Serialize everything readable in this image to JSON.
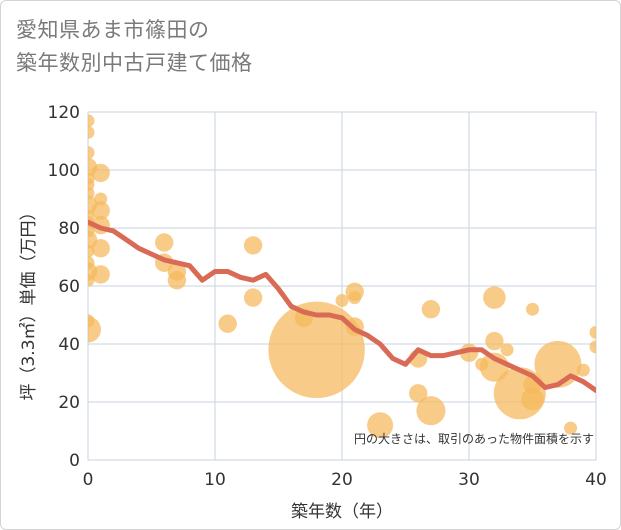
{
  "title_line1": "愛知県あま市篠田の",
  "title_line2": "築年数別中古戸建て価格",
  "chart_data": {
    "type": "scatter",
    "xlabel": "築年数（年）",
    "ylabel": "坪（3.3㎡）単価（万円）",
    "xlim": [
      0,
      40
    ],
    "ylim": [
      0,
      120
    ],
    "xticks": [
      0,
      10,
      20,
      30,
      40
    ],
    "yticks": [
      0,
      20,
      40,
      60,
      80,
      100,
      120
    ],
    "grid": true,
    "note": "円の大きさは、取引のあった物件面積を示す",
    "colors": {
      "bubble": "#f5b95a",
      "line": "#d96a55",
      "grid": "#c8d3e0"
    },
    "bubbles": [
      {
        "x": 0,
        "y": 117,
        "s": 1
      },
      {
        "x": 0,
        "y": 113,
        "s": 1
      },
      {
        "x": 0,
        "y": 106,
        "s": 1
      },
      {
        "x": 0,
        "y": 101,
        "s": 2
      },
      {
        "x": 0,
        "y": 97,
        "s": 1
      },
      {
        "x": 0,
        "y": 95,
        "s": 1
      },
      {
        "x": 0,
        "y": 92,
        "s": 1
      },
      {
        "x": 0,
        "y": 88,
        "s": 2
      },
      {
        "x": 0,
        "y": 84,
        "s": 1
      },
      {
        "x": 0,
        "y": 82,
        "s": 1
      },
      {
        "x": 0,
        "y": 79,
        "s": 1
      },
      {
        "x": 0,
        "y": 76,
        "s": 2
      },
      {
        "x": 0,
        "y": 72,
        "s": 1
      },
      {
        "x": 0,
        "y": 68,
        "s": 1
      },
      {
        "x": 0,
        "y": 65,
        "s": 2
      },
      {
        "x": 0,
        "y": 62,
        "s": 1
      },
      {
        "x": 0,
        "y": 48,
        "s": 1
      },
      {
        "x": 0,
        "y": 45,
        "s": 4
      },
      {
        "x": 1,
        "y": 99,
        "s": 2
      },
      {
        "x": 1,
        "y": 90,
        "s": 1
      },
      {
        "x": 1,
        "y": 86,
        "s": 2
      },
      {
        "x": 1,
        "y": 81,
        "s": 2
      },
      {
        "x": 1,
        "y": 73,
        "s": 2
      },
      {
        "x": 1,
        "y": 64,
        "s": 2
      },
      {
        "x": 6,
        "y": 75,
        "s": 2
      },
      {
        "x": 6,
        "y": 68,
        "s": 2
      },
      {
        "x": 7,
        "y": 65,
        "s": 2
      },
      {
        "x": 7,
        "y": 62,
        "s": 2
      },
      {
        "x": 11,
        "y": 47,
        "s": 2
      },
      {
        "x": 13,
        "y": 74,
        "s": 2
      },
      {
        "x": 13,
        "y": 56,
        "s": 2
      },
      {
        "x": 17,
        "y": 49,
        "s": 2
      },
      {
        "x": 18,
        "y": 38,
        "s": 55
      },
      {
        "x": 20,
        "y": 55,
        "s": 1
      },
      {
        "x": 21,
        "y": 58,
        "s": 2
      },
      {
        "x": 21,
        "y": 56,
        "s": 1
      },
      {
        "x": 21,
        "y": 46,
        "s": 2
      },
      {
        "x": 23,
        "y": 12,
        "s": 4
      },
      {
        "x": 26,
        "y": 35,
        "s": 2
      },
      {
        "x": 26,
        "y": 23,
        "s": 2
      },
      {
        "x": 27,
        "y": 52,
        "s": 2
      },
      {
        "x": 27,
        "y": 17,
        "s": 5
      },
      {
        "x": 30,
        "y": 37,
        "s": 2
      },
      {
        "x": 31,
        "y": 33,
        "s": 1
      },
      {
        "x": 32,
        "y": 56,
        "s": 3
      },
      {
        "x": 32,
        "y": 41,
        "s": 2
      },
      {
        "x": 32,
        "y": 32,
        "s": 5
      },
      {
        "x": 33,
        "y": 38,
        "s": 1
      },
      {
        "x": 34,
        "y": 23,
        "s": 16
      },
      {
        "x": 35,
        "y": 52,
        "s": 1
      },
      {
        "x": 35,
        "y": 26,
        "s": 2
      },
      {
        "x": 35,
        "y": 21,
        "s": 3
      },
      {
        "x": 37,
        "y": 33,
        "s": 13
      },
      {
        "x": 38,
        "y": 11,
        "s": 1
      },
      {
        "x": 39,
        "y": 31,
        "s": 1
      },
      {
        "x": 40,
        "y": 44,
        "s": 1
      },
      {
        "x": 40,
        "y": 39,
        "s": 1
      }
    ],
    "trend": {
      "x": [
        0,
        1,
        2,
        3,
        4,
        5,
        6,
        7,
        8,
        9,
        10,
        11,
        12,
        13,
        14,
        15,
        16,
        17,
        18,
        19,
        20,
        21,
        22,
        23,
        24,
        25,
        26,
        27,
        28,
        29,
        30,
        31,
        32,
        33,
        34,
        35,
        36,
        37,
        38,
        39,
        40
      ],
      "y": [
        82,
        80,
        79,
        76,
        73,
        71,
        69,
        68,
        67,
        62,
        65,
        65,
        63,
        62,
        64,
        59,
        53,
        51,
        50,
        50,
        49,
        45,
        43,
        40,
        35,
        33,
        38,
        36,
        36,
        37,
        38,
        38,
        35,
        33,
        31,
        29,
        25,
        26,
        29,
        27,
        24
      ]
    }
  }
}
